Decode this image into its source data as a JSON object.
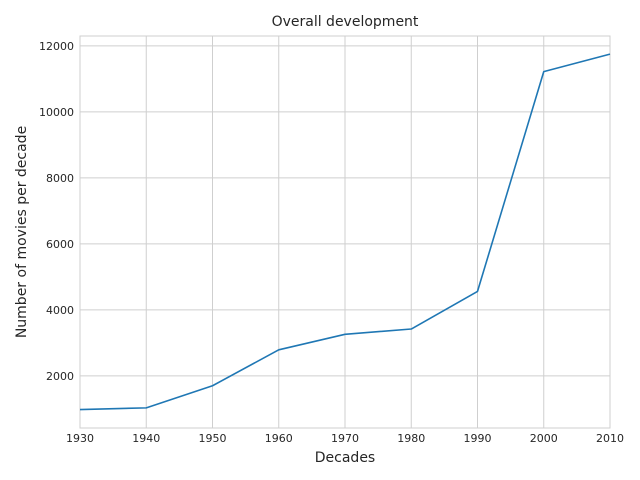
{
  "chart_data": {
    "type": "line",
    "title": "Overall development",
    "xlabel": "Decades",
    "ylabel": "Number of movies per decade",
    "x": [
      1930,
      1940,
      1950,
      1960,
      1970,
      1980,
      1990,
      2000,
      2010
    ],
    "series": [
      {
        "values": [
          980,
          1030,
          1700,
          2790,
          3260,
          3420,
          4560,
          11220,
          11750
        ],
        "color": "#1f77b4"
      }
    ],
    "xlim": [
      1930,
      2010
    ],
    "ylim": [
      420,
      12300
    ],
    "xticks": [
      1930,
      1940,
      1950,
      1960,
      1970,
      1980,
      1990,
      2000,
      2010
    ],
    "yticks": [
      2000,
      4000,
      6000,
      8000,
      10000,
      12000
    ],
    "grid": true
  }
}
